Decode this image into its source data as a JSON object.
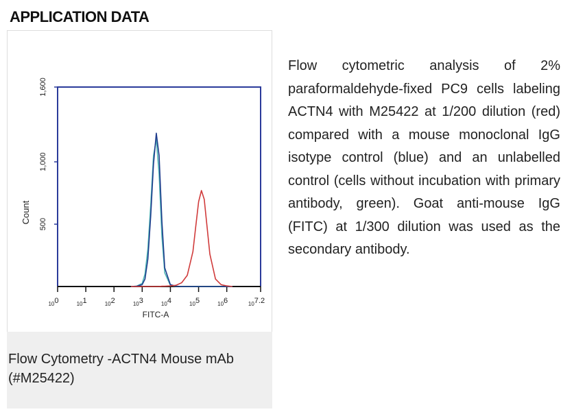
{
  "header": {
    "title": "APPLICATION DATA"
  },
  "chart_data": {
    "type": "line",
    "xlabel": "FITC-A",
    "ylabel": "Count",
    "xscale": "log",
    "x": [
      398,
      631,
      1000,
      1259,
      1585,
      1995,
      2512,
      3162,
      3981,
      5012,
      6310,
      10000,
      15849,
      25119,
      39811,
      63096,
      79433,
      100000,
      125893,
      158489,
      199526,
      251189,
      398107,
      630957,
      1000000,
      1584893
    ],
    "series": [
      {
        "color": "#4fb6b6",
        "values": [
          0,
          3,
          25,
          100,
          300,
          650,
          1050,
          1180,
          900,
          400,
          110,
          10,
          2,
          0,
          0,
          0,
          0,
          0,
          0,
          0,
          0,
          0,
          0,
          0,
          0,
          0
        ]
      },
      {
        "color": "#1f3c8c",
        "values": [
          0,
          2,
          15,
          60,
          220,
          560,
          980,
          1230,
          1050,
          520,
          150,
          15,
          3,
          0,
          0,
          0,
          0,
          0,
          0,
          0,
          0,
          0,
          0,
          0,
          0,
          0
        ]
      },
      {
        "color": "#d03a3a",
        "values": [
          0,
          0,
          0,
          0,
          0,
          0,
          0,
          0,
          0,
          2,
          3,
          5,
          10,
          30,
          90,
          280,
          480,
          680,
          770,
          700,
          480,
          260,
          60,
          15,
          5,
          0
        ]
      }
    ],
    "xlim": [
      1,
      15848932
    ],
    "ylim": [
      0,
      1600
    ],
    "xticks": [
      {
        "value": 1,
        "label": "10",
        "sup": "0"
      },
      {
        "value": 10,
        "label": "10",
        "sup": "1"
      },
      {
        "value": 100,
        "label": "10",
        "sup": "2"
      },
      {
        "value": 1000,
        "label": "10",
        "sup": "3"
      },
      {
        "value": 10000,
        "label": "10",
        "sup": "4"
      },
      {
        "value": 100000,
        "label": "10",
        "sup": "5"
      },
      {
        "value": 1000000,
        "label": "10",
        "sup": "6"
      },
      {
        "value": 15848932,
        "label": "10",
        "sup": "7.2"
      }
    ],
    "yticks": [
      500,
      {
        "value": 1000,
        "label": "1,000"
      },
      {
        "value": 1600,
        "label": "1,600"
      }
    ],
    "frame_color": "#2a3a9a"
  },
  "description": "Flow cytometric analysis of 2% paraformaldehyde-fixed PC9 cells labeling ACTN4 with M25422 at 1/200 dilution (red) compared with a mouse monoclonal IgG isotype control (blue) and an unlabelled control (cells without incubation with primary antibody, green). Goat anti-mouse IgG (FITC) at 1/300 dilution was used as the secondary antibody.",
  "figure_caption": "Flow Cytometry -ACTN4 Mouse mAb (#M25422)"
}
